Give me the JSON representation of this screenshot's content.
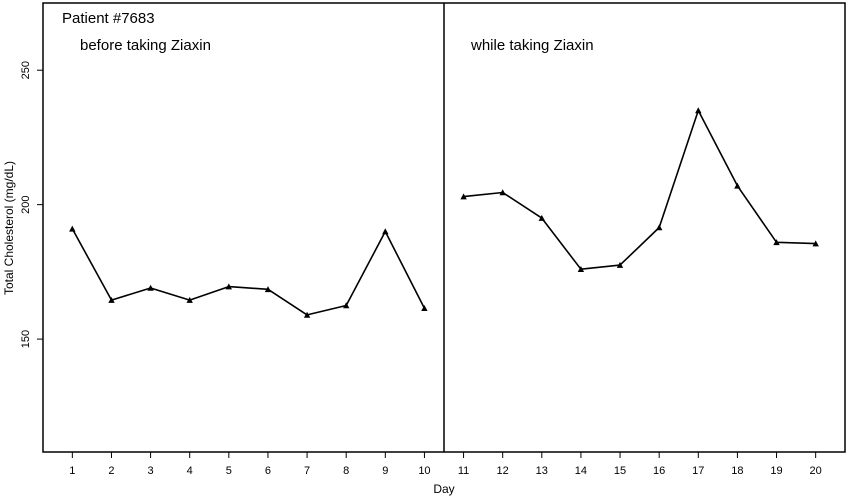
{
  "chart_data": {
    "type": "line",
    "title": "Patient #7683",
    "xlabel": "Day",
    "ylabel": "Total Cholesterol (mg/dL)",
    "x_ticks": [
      1,
      2,
      3,
      4,
      5,
      6,
      7,
      8,
      9,
      10,
      11,
      12,
      13,
      14,
      15,
      16,
      17,
      18,
      19,
      20
    ],
    "y_ticks": [
      150,
      200,
      250
    ],
    "xlim": [
      0.25,
      20.75
    ],
    "ylim": [
      108,
      275
    ],
    "grid": false,
    "divider_x": 10.5,
    "panels": [
      {
        "label": "before taking Ziaxin",
        "x": [
          1,
          2,
          3,
          4,
          5,
          6,
          7,
          8,
          9,
          10
        ],
        "values": [
          191,
          164.5,
          169,
          164.5,
          169.5,
          168.5,
          159,
          162.5,
          190,
          161.5
        ]
      },
      {
        "label": "while taking Ziaxin",
        "x": [
          11,
          12,
          13,
          14,
          15,
          16,
          17,
          18,
          19,
          20
        ],
        "values": [
          203,
          204.5,
          195,
          176,
          177.5,
          191.5,
          235,
          207,
          186,
          185.5
        ]
      }
    ],
    "colors": {
      "line": "#000000",
      "marker": "#000000",
      "axis": "#000000"
    }
  }
}
